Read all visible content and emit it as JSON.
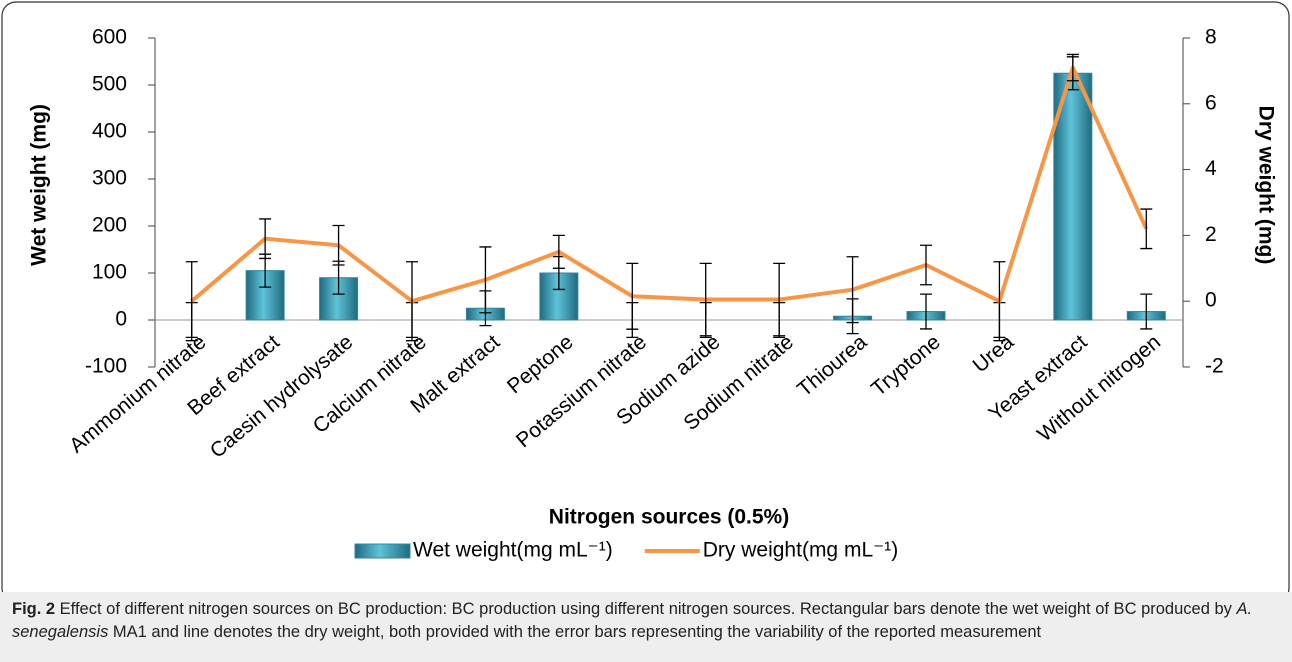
{
  "chart_data": {
    "type": "bar_line",
    "xlabel": "Nitrogen sources (0.5%)",
    "ylabel": "Wet weight (mg)",
    "y2label": "Dry weight (mg)",
    "categories": [
      "Ammonium nitrate",
      "Beef extract",
      "Caesin hydrolysate",
      "Calcium nitrate",
      "Malt extract",
      "Peptone",
      "Potassium nitrate",
      "Sodium azide",
      "Sodium nitrate",
      "Thiourea",
      "Tryptone",
      "Urea",
      "Yeast extract",
      "Without nitrogen"
    ],
    "series": [
      {
        "name": "Wet weight(mg mL⁻¹)",
        "type": "bar",
        "color": "#31859c",
        "values": [
          0,
          105,
          90,
          0,
          25,
          100,
          0,
          0,
          0,
          8,
          18,
          0,
          525,
          18
        ],
        "errors": [
          37,
          35,
          35,
          37,
          37,
          35,
          37,
          37,
          37,
          37,
          37,
          37,
          35,
          37
        ]
      },
      {
        "name": "Dry weight(mg mL⁻¹)",
        "type": "line",
        "axis": "y2",
        "color": "#f79646",
        "values": [
          0,
          1.9,
          1.7,
          0,
          0.65,
          1.5,
          0.15,
          0.05,
          0.05,
          0.35,
          1.1,
          0,
          7.1,
          2.2
        ],
        "errors": [
          1.2,
          0.6,
          0.6,
          1.2,
          1.0,
          0.5,
          1.0,
          1.1,
          1.1,
          1.0,
          0.6,
          1.2,
          0.4,
          0.6
        ]
      }
    ],
    "ylim": [
      -100,
      600
    ],
    "yticks": [
      -100,
      0,
      100,
      200,
      300,
      400,
      500,
      600
    ],
    "y2lim": [
      -2,
      8
    ],
    "y2ticks": [
      -2,
      0,
      2,
      4,
      6,
      8
    ],
    "legend": "bottom"
  },
  "caption": {
    "label": "Fig. 2",
    "parts": [
      " Effect of different nitrogen sources on BC production: BC production using different nitrogen sources. Rectangular bars denote the wet weight of BC produced by ",
      "A. senegalensis",
      " MA1 and line denotes the dry weight, both provided with the error bars representing the variability of the reported measurement"
    ]
  }
}
